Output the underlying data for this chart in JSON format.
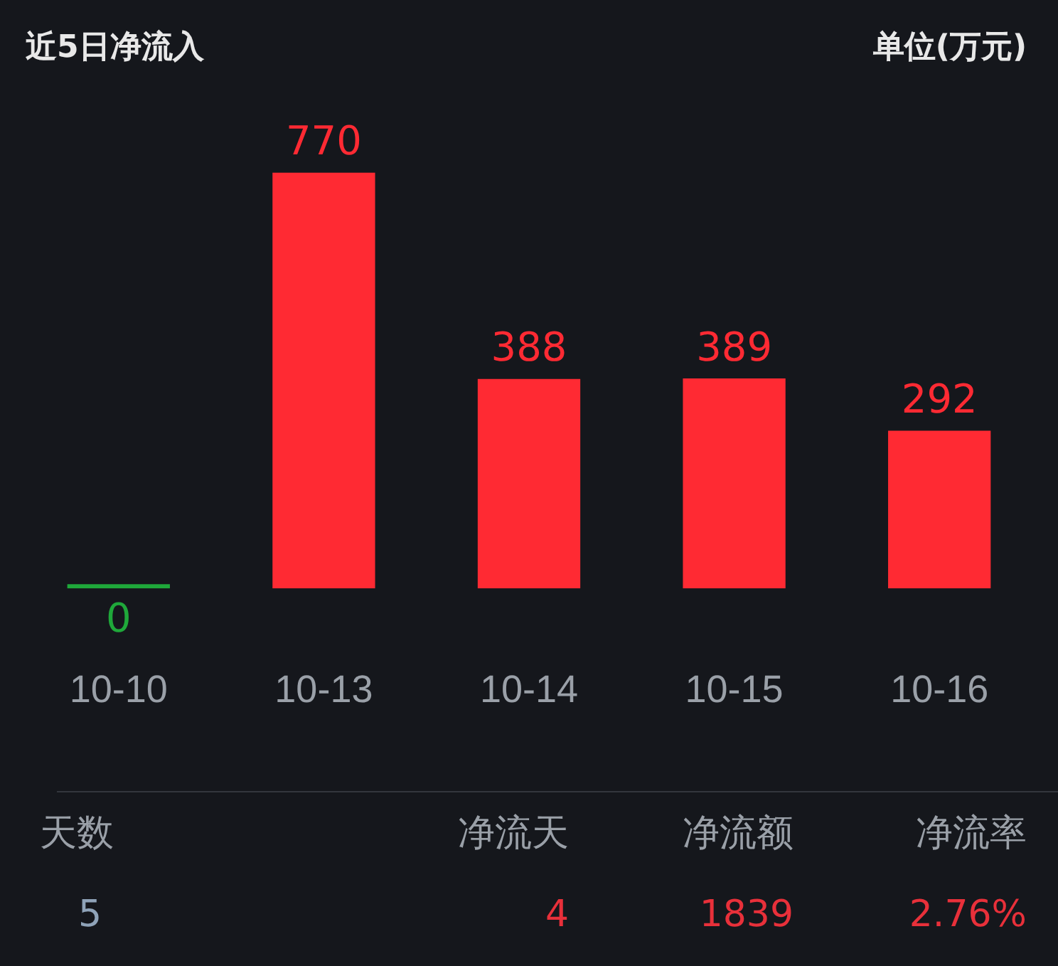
{
  "chart_data": {
    "type": "bar",
    "title": "近5日净流入",
    "subtitle": "单位(万元)",
    "categories": [
      "10-10",
      "10-13",
      "10-14",
      "10-15",
      "10-16"
    ],
    "values": [
      0,
      770,
      388,
      389,
      292
    ],
    "colors": [
      "#1fa83a",
      "#ff2a33",
      "#ff2a33",
      "#ff2a33",
      "#ff2a33"
    ],
    "data_labels": true,
    "legend": false,
    "tick_labels": "x",
    "annotations": [
      "天数",
      "5",
      "净流天",
      "4",
      "净流额",
      "1839",
      "净流率",
      "2.76%"
    ]
  }
}
